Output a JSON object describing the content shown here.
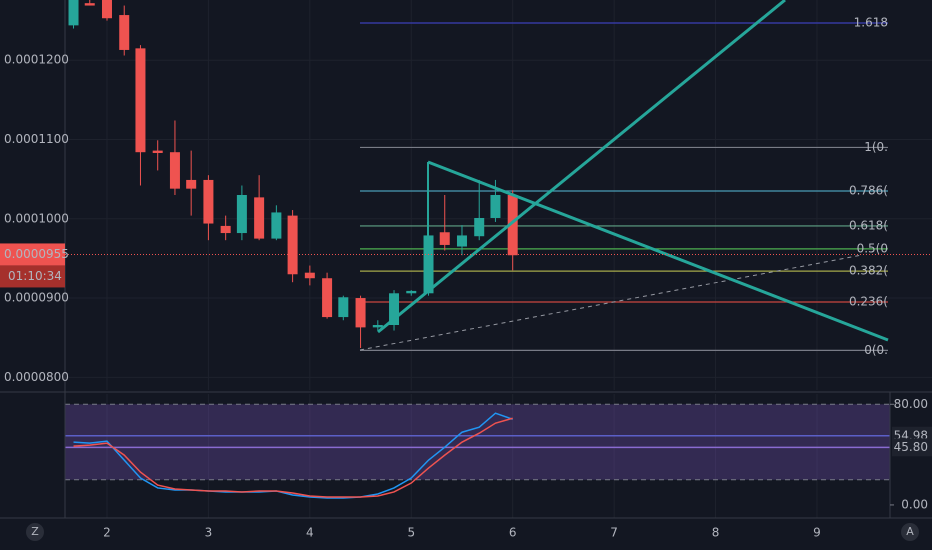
{
  "chart_data": [
    {
      "type": "candlestick",
      "x": [
        1.67,
        1.83,
        2,
        2.17,
        2.33,
        2.5,
        2.67,
        2.83,
        3,
        3.17,
        3.33,
        3.5,
        3.67,
        3.83,
        4,
        4.17,
        4.33,
        4.5,
        4.67,
        4.83,
        5,
        5.17,
        5.33,
        5.5,
        5.67,
        5.83,
        6
      ],
      "open": [
        0.0001244,
        0.0001272,
        0.0001276,
        0.0001257,
        0.0001215,
        0.0001086,
        0.0001084,
        0.0001049,
        0.0001049,
        9.91e-05,
        9.82e-05,
        0.0001027,
        9.75e-05,
        0.0001004,
        9.32e-05,
        9.25e-05,
        8.76e-05,
        9e-05,
        8.63e-05,
        8.66e-05,
        9.06e-05,
        9.06e-05,
        9.83e-05,
        9.65e-05,
        9.78e-05,
        0.0001001,
        0.000103
      ],
      "high": [
        0.0001276,
        0.0001276,
        0.0001276,
        0.0001269,
        0.0001219,
        0.0001099,
        0.0001124,
        0.0001086,
        0.0001055,
        0.0001004,
        0.0001042,
        0.0001055,
        0.0001017,
        0.0001011,
        9.41e-05,
        9.32e-05,
        9.03e-05,
        9.03e-05,
        8.72e-05,
        9.1e-05,
        9.1e-05,
        0.0001061,
        0.000103,
        9.92e-05,
        0.0001049,
        0.0001049,
        0.0001036
      ],
      "low": [
        0.000124,
        0.0001269,
        0.000125,
        0.0001206,
        0.0001042,
        0.0001061,
        0.000103,
        0.0001004,
        9.73e-05,
        9.73e-05,
        9.73e-05,
        9.73e-05,
        9.73e-05,
        9.2e-05,
        9.16e-05,
        8.74e-05,
        8.72e-05,
        8.37e-05,
        8.59e-05,
        8.59e-05,
        9.03e-05,
        9.03e-05,
        9.6e-05,
        9.54e-05,
        9.73e-05,
        9.96e-05,
        9.35e-05
      ],
      "close": [
        0.0001276,
        0.0001269,
        0.0001253,
        0.0001213,
        0.0001084,
        0.0001083,
        0.0001038,
        0.0001038,
        9.94e-05,
        9.82e-05,
        0.000103,
        9.75e-05,
        0.0001008,
        9.3e-05,
        9.25e-05,
        8.76e-05,
        9.01e-05,
        8.63e-05,
        8.66e-05,
        9.06e-05,
        9.09e-05,
        9.79e-05,
        9.67e-05,
        9.79e-05,
        0.0001001,
        0.000103,
        9.54e-05
      ],
      "up_color": "#26a69a",
      "down_color": "#ef5350",
      "xlim": [
        1.586,
        9.72
      ],
      "xticks": [
        2,
        3,
        4,
        5,
        6,
        7,
        8,
        9
      ],
      "ylim": [
        7.84e-05,
        0.0001276
      ],
      "yticks": [
        {
          "value": 8e-05,
          "label": "0.0000800"
        },
        {
          "value": 9e-05,
          "label": "0.0000900"
        },
        {
          "value": 0.0001,
          "label": "0.0001000"
        },
        {
          "value": 0.00011,
          "label": "0.0001100"
        },
        {
          "value": 0.00012,
          "label": "0.0001200"
        }
      ],
      "last_price": 9.55e-05,
      "countdown": "01:10:34",
      "fib_levels": [
        {
          "label": "1.618",
          "value": 0.0001247,
          "color": "#3b3fb8"
        },
        {
          "label": "1(0.",
          "value": 0.000109,
          "color": "#787b86"
        },
        {
          "label": "0.786(",
          "value": 0.0001035,
          "color": "#4a9db5"
        },
        {
          "label": "0.618(",
          "value": 9.91e-05,
          "color": "#5fa386"
        },
        {
          "label": "0.5(0",
          "value": 9.62e-05,
          "color": "#4caf50"
        },
        {
          "label": "0.382(",
          "value": 9.34e-05,
          "color": "#a5a94a"
        },
        {
          "label": "0.236(",
          "value": 8.95e-05,
          "color": "#c9453f"
        },
        {
          "label": "0(0.",
          "value": 8.34e-05,
          "color": "#787b86"
        }
      ],
      "x_corner_left": "Z",
      "x_corner_right": "A"
    },
    {
      "type": "line",
      "x": [
        1.67,
        1.83,
        2,
        2.17,
        2.33,
        2.5,
        2.67,
        2.83,
        3,
        3.17,
        3.33,
        3.5,
        3.67,
        3.83,
        4,
        4.17,
        4.33,
        4.5,
        4.67,
        4.83,
        5,
        5.17,
        5.33,
        5.5,
        5.67,
        5.83,
        6
      ],
      "series": [
        {
          "color": "#2196f3",
          "values": [
            49.9,
            49.1,
            50.7,
            35.6,
            21.4,
            13.5,
            11.9,
            11.9,
            11.1,
            10.3,
            10.3,
            10.3,
            11.1,
            7.9,
            6.3,
            5.5,
            5.5,
            6.3,
            8.7,
            13.5,
            21.4,
            35.6,
            45.9,
            57.8,
            61.8,
            72.9,
            68.1
          ]
        },
        {
          "color": "#ef5350",
          "values": [
            46.7,
            47.5,
            49.1,
            39.6,
            26.1,
            15.8,
            12.7,
            11.9,
            11.1,
            11.1,
            10.3,
            11.1,
            11.1,
            9.5,
            7.1,
            6.3,
            6.3,
            6.3,
            7.1,
            10.3,
            17.4,
            29.3,
            39.6,
            49.9,
            57.0,
            65.0,
            68.9
          ]
        }
      ],
      "ylim": [
        -8,
        85
      ],
      "yticks": [
        {
          "value": 0,
          "label": "0.00"
        },
        {
          "value": 80,
          "label": "80.00"
        }
      ],
      "band": [
        20,
        80
      ],
      "band_color": "#7e57c2",
      "levels": [
        {
          "value": 54.98,
          "label": "54.98",
          "color": "#5b5fc7"
        },
        {
          "value": 45.8,
          "label": "45.80",
          "color": "#8a6bd1"
        }
      ]
    }
  ]
}
